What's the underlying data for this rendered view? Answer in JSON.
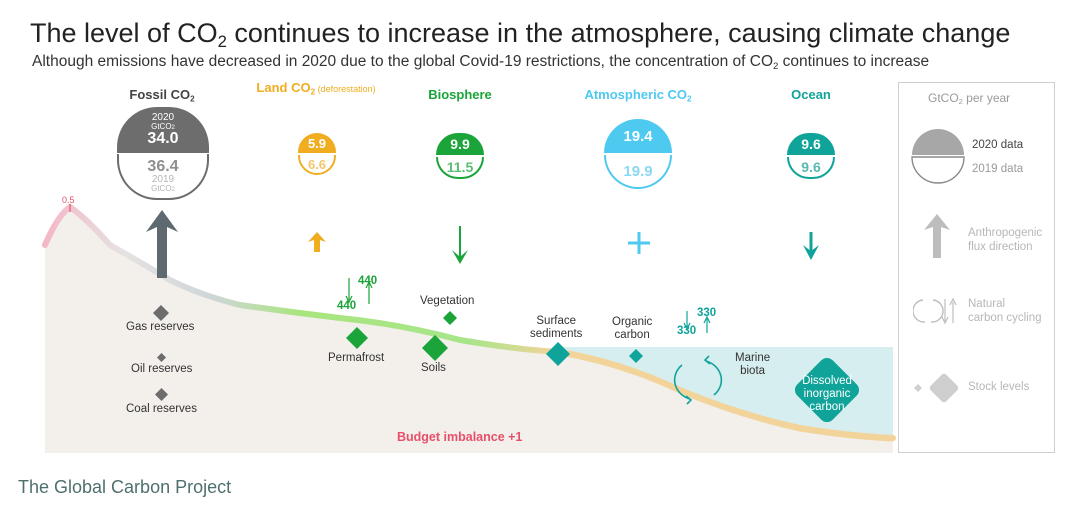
{
  "title": {
    "pre": "The level of CO",
    "sub": "2",
    "post": " continues to increase in the atmosphere, causing climate change"
  },
  "subtitle": {
    "pre": "Although emissions have decreased in 2020 due to the global Covid-19 restrictions, the concentration of CO",
    "sub": "2",
    "post": " continues to increase"
  },
  "credit": "The Global Carbon Project",
  "headers": {
    "fossil": {
      "pre": "Fossil CO",
      "sub": "2"
    },
    "land": {
      "pre": "Land  CO",
      "sub": "2",
      "small": " (deforestation)"
    },
    "biosphere": "Biosphere",
    "atmospheric": {
      "pre": "Atmospheric CO",
      "sub": "2"
    },
    "ocean": "Ocean"
  },
  "fossil_badge": {
    "year_2020": "2020",
    "unit_top": "GtCO",
    "value_2020": "34.0",
    "value_2019": "36.4",
    "year_2019": "2019",
    "unit_bottom": "GtCO"
  },
  "land_badge": {
    "value_2020": "5.9",
    "value_2019": "6.6"
  },
  "biosphere_badge": {
    "value_2020": "9.9",
    "value_2019": "11.5"
  },
  "atmosphere_badge": {
    "value_2020": "19.4",
    "value_2019": "19.9"
  },
  "ocean_badge": {
    "value_2020": "9.6",
    "value_2019": "9.6"
  },
  "peak_value": "0.5",
  "reserves": {
    "gas": "Gas reserves",
    "oil": "Oil reserves",
    "coal": "Coal reserves"
  },
  "land_flux": {
    "down": "440",
    "up": "440"
  },
  "ocean_flux": {
    "down": "330",
    "up": "330"
  },
  "labels": {
    "permafrost": "Permafrost",
    "vegetation": "Vegetation",
    "soils": "Soils",
    "surface_sediments_1": "Surface",
    "surface_sediments_2": "sediments",
    "organic_carbon_1": "Organic",
    "organic_carbon_2": "carbon",
    "marine_biota_1": "Marine",
    "marine_biota_2": "biota",
    "dissolved_1": "Dissolved",
    "dissolved_2": "inorganic",
    "dissolved_3": "carbon",
    "budget_imbalance": "Budget imbalance +1"
  },
  "legend": {
    "title": {
      "pre": "GtCO",
      "sub": "2",
      "post": " per year"
    },
    "data_2020": "2020 data",
    "data_2019": "2019 data",
    "anthropogenic_1": "Anthropogenic",
    "anthropogenic_2": "flux direction",
    "natural_1": "Natural",
    "natural_2": "carbon cycling",
    "stock": "Stock levels"
  },
  "colors": {
    "fossil": "#6d6d6d",
    "land": "#f0ad1f",
    "biosphere": "#1aa43a",
    "atmosphere": "#4ec9f0",
    "ocean": "#10a39a",
    "budget": "#e8506a",
    "legend_grey": "#b0b0b0"
  }
}
